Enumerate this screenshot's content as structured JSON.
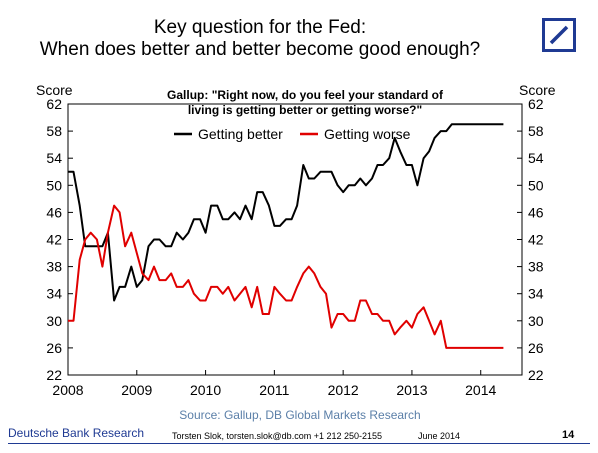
{
  "header": {
    "title_line1": "Key question for the Fed:",
    "title_line2": "When does better and better become good enough?"
  },
  "chart_data": {
    "type": "line",
    "question_line1": "Gallup: \"Right now, do you feel your standard of",
    "question_line2": "living is getting better or getting worse?\"",
    "ylabel_left": "Score",
    "ylabel_right": "Score",
    "ylim": [
      22,
      62
    ],
    "yticks": [
      22,
      26,
      30,
      34,
      38,
      42,
      46,
      50,
      54,
      58,
      62
    ],
    "xlim": [
      2008,
      2014.6
    ],
    "xticks": [
      2008,
      2009,
      2010,
      2011,
      2012,
      2013,
      2014
    ],
    "grid": false,
    "legend_position": "top",
    "series": [
      {
        "name": "Getting better",
        "color": "#000000",
        "x": [
          2008.0,
          2008.08,
          2008.17,
          2008.25,
          2008.33,
          2008.42,
          2008.5,
          2008.58,
          2008.67,
          2008.75,
          2008.83,
          2008.92,
          2009.0,
          2009.08,
          2009.17,
          2009.25,
          2009.33,
          2009.42,
          2009.5,
          2009.58,
          2009.67,
          2009.75,
          2009.83,
          2009.92,
          2010.0,
          2010.08,
          2010.17,
          2010.25,
          2010.33,
          2010.42,
          2010.5,
          2010.58,
          2010.67,
          2010.75,
          2010.83,
          2010.92,
          2011.0,
          2011.08,
          2011.17,
          2011.25,
          2011.33,
          2011.42,
          2011.5,
          2011.58,
          2011.67,
          2011.75,
          2011.83,
          2011.92,
          2012.0,
          2012.08,
          2012.17,
          2012.25,
          2012.33,
          2012.42,
          2012.5,
          2012.58,
          2012.67,
          2012.75,
          2012.83,
          2012.92,
          2013.0,
          2013.08,
          2013.17,
          2013.25,
          2013.33,
          2013.42,
          2013.5,
          2013.58,
          2013.67,
          2013.75,
          2013.83,
          2013.92,
          2014.0,
          2014.08,
          2014.17,
          2014.25,
          2014.33
        ],
        "values": [
          52,
          52,
          47,
          41,
          41,
          41,
          41,
          43,
          33,
          35,
          35,
          38,
          35,
          36,
          41,
          42,
          42,
          41,
          41,
          43,
          42,
          43,
          45,
          45,
          43,
          47,
          47,
          45,
          45,
          46,
          45,
          47,
          45,
          49,
          49,
          47,
          44,
          44,
          45,
          45,
          47,
          53,
          51,
          51,
          52,
          52,
          52,
          50,
          49,
          50,
          50,
          51,
          50,
          51,
          53,
          53,
          54,
          57,
          55,
          53,
          53,
          50,
          54,
          55,
          57,
          58,
          58,
          59,
          59,
          59,
          59,
          59,
          59,
          59,
          59,
          59,
          59
        ]
      },
      {
        "name": "Getting worse",
        "color": "#e00000",
        "x": [
          2008.0,
          2008.08,
          2008.17,
          2008.25,
          2008.33,
          2008.42,
          2008.5,
          2008.58,
          2008.67,
          2008.75,
          2008.83,
          2008.92,
          2009.0,
          2009.08,
          2009.17,
          2009.25,
          2009.33,
          2009.42,
          2009.5,
          2009.58,
          2009.67,
          2009.75,
          2009.83,
          2009.92,
          2010.0,
          2010.08,
          2010.17,
          2010.25,
          2010.33,
          2010.42,
          2010.5,
          2010.58,
          2010.67,
          2010.75,
          2010.83,
          2010.92,
          2011.0,
          2011.08,
          2011.17,
          2011.25,
          2011.33,
          2011.42,
          2011.5,
          2011.58,
          2011.67,
          2011.75,
          2011.83,
          2011.92,
          2012.0,
          2012.08,
          2012.17,
          2012.25,
          2012.33,
          2012.42,
          2012.5,
          2012.58,
          2012.67,
          2012.75,
          2012.83,
          2012.92,
          2013.0,
          2013.08,
          2013.17,
          2013.25,
          2013.33,
          2013.42,
          2013.5,
          2013.58,
          2013.67,
          2013.75,
          2013.83,
          2013.92,
          2014.0,
          2014.08,
          2014.17,
          2014.25,
          2014.33
        ],
        "values": [
          30,
          30,
          39,
          42,
          43,
          42,
          38,
          43,
          47,
          46,
          41,
          43,
          40,
          37,
          36,
          38,
          36,
          36,
          37,
          35,
          35,
          36,
          34,
          33,
          33,
          35,
          35,
          34,
          35,
          33,
          34,
          35,
          32,
          35,
          31,
          31,
          35,
          34,
          33,
          33,
          35,
          37,
          38,
          37,
          35,
          34,
          29,
          31,
          31,
          30,
          30,
          33,
          33,
          31,
          31,
          30,
          30,
          28,
          29,
          30,
          29,
          31,
          32,
          30,
          28,
          30,
          26,
          26,
          26,
          26,
          26,
          26,
          26,
          26,
          26,
          26,
          26
        ]
      }
    ]
  },
  "footer": {
    "source": "Source: Gallup, DB Global Markets Research",
    "brand": "Deutsche Bank Research",
    "contact": "Torsten Slok, torsten.slok@db.com  +1 212 250-2155",
    "date": "June 2014",
    "page_number": "14"
  },
  "logo": {
    "icon": "deutsche-bank-logo-icon",
    "color": "#1f3a93"
  }
}
